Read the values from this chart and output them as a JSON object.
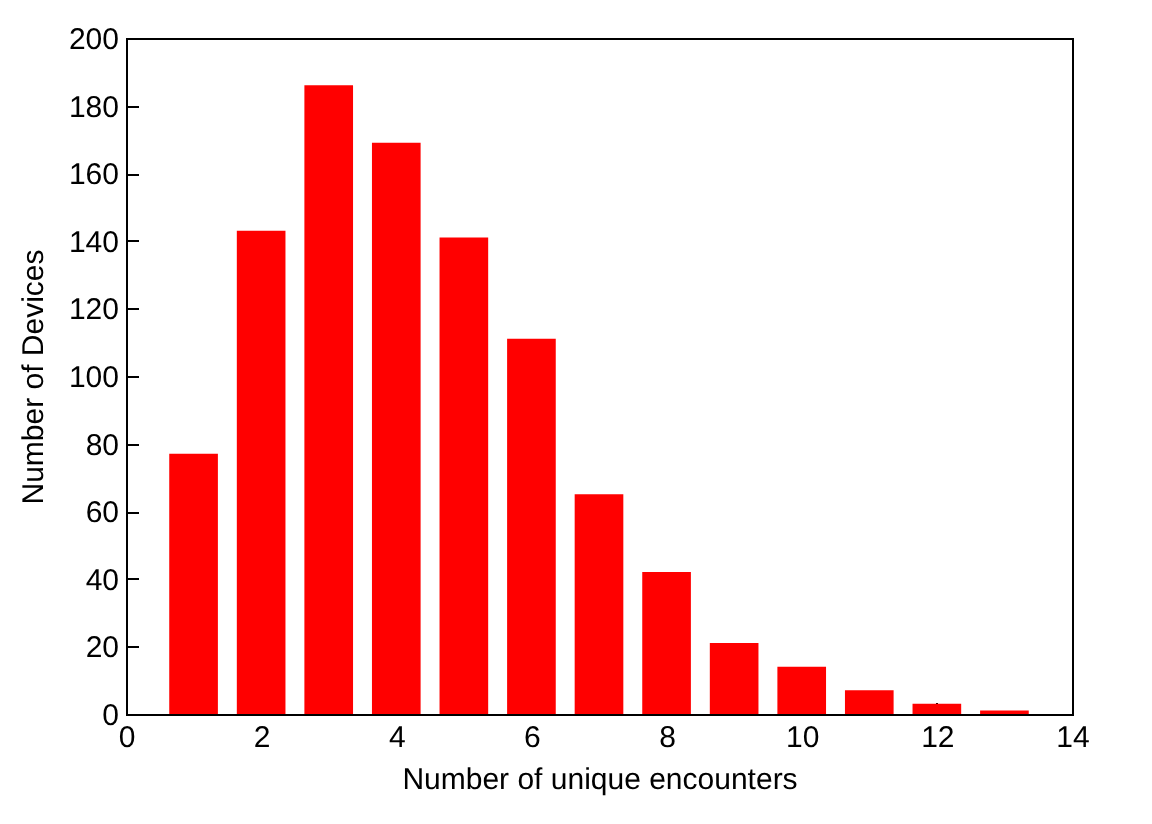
{
  "chart_data": {
    "type": "bar",
    "xlabel": "Number of unique encounters",
    "ylabel": "Number of Devices",
    "x": [
      1,
      2,
      3,
      4,
      5,
      6,
      7,
      8,
      9,
      10,
      11,
      12,
      13
    ],
    "values": [
      77,
      143,
      186,
      169,
      141,
      111,
      65,
      42,
      21,
      14,
      7,
      3,
      1
    ],
    "color": "#ff0000",
    "xlim": [
      0,
      14
    ],
    "xticks": [
      0,
      2,
      4,
      6,
      8,
      10,
      12,
      14
    ],
    "ylim": [
      0,
      200
    ],
    "yticks": [
      0,
      20,
      40,
      60,
      80,
      100,
      120,
      140,
      160,
      180,
      200
    ],
    "grid": false
  }
}
